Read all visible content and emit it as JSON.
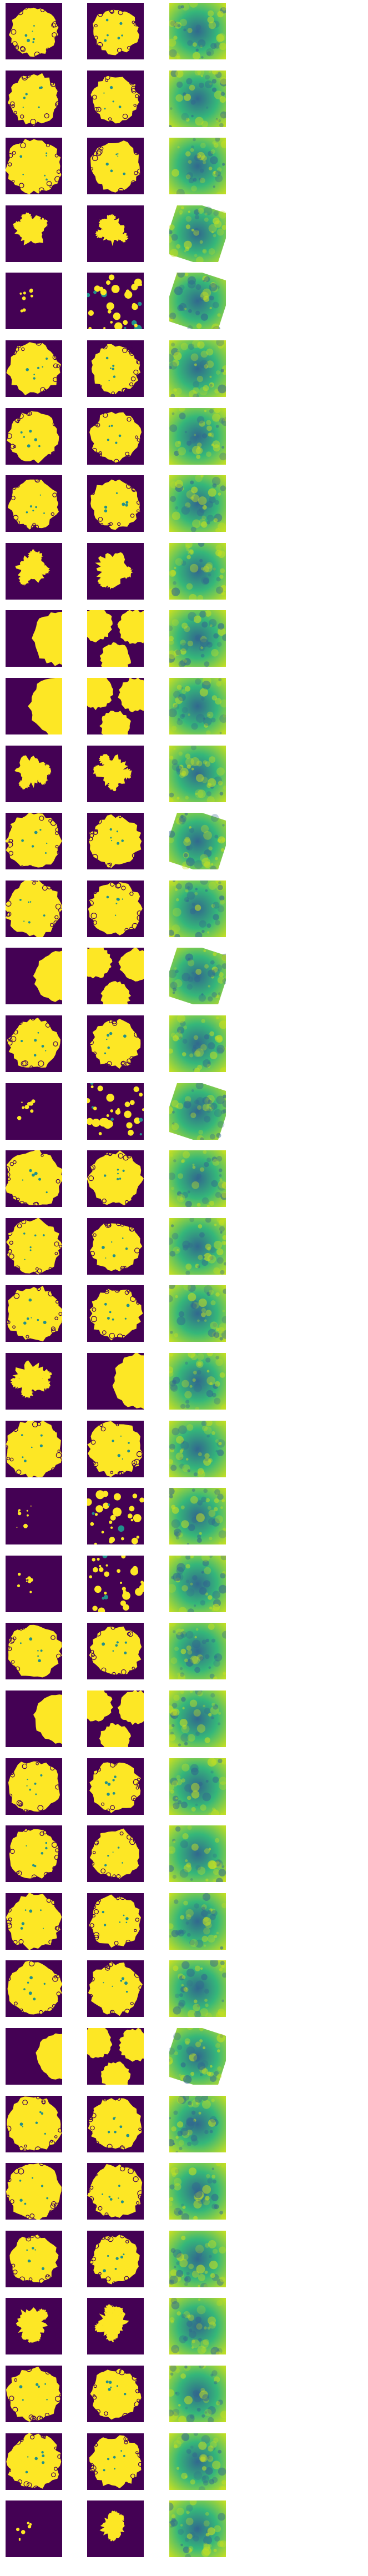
{
  "figure": {
    "rows": 38,
    "columns": 3,
    "column_kinds": [
      "binary-mask",
      "binary-mask",
      "continuous-map"
    ],
    "colormap": "viridis",
    "colors": {
      "background": "#ffffff",
      "mask_off": "#440154",
      "mask_on": "#fde725",
      "mask_edge_teal": "#21918c",
      "map_low": "#31688e",
      "map_mid": "#35b779",
      "map_high": "#c8e020"
    },
    "grid": [
      {
        "row": 1,
        "col1": {
          "cover": 0.55,
          "shape": "blob"
        },
        "col2": {
          "cover": 0.5,
          "shape": "blob"
        },
        "col3": {
          "mean": 0.55,
          "rotated": false
        }
      },
      {
        "row": 2,
        "col1": {
          "cover": 0.6,
          "shape": "blob"
        },
        "col2": {
          "cover": 0.52,
          "shape": "blob"
        },
        "col3": {
          "mean": 0.55,
          "rotated": false
        }
      },
      {
        "row": 3,
        "col1": {
          "cover": 0.72,
          "shape": "blob"
        },
        "col2": {
          "cover": 0.6,
          "shape": "blob"
        },
        "col3": {
          "mean": 0.58,
          "rotated": false
        }
      },
      {
        "row": 4,
        "col1": {
          "cover": 0.18,
          "shape": "fragment"
        },
        "col2": {
          "cover": 0.15,
          "shape": "fragment"
        },
        "col3": {
          "mean": 0.7,
          "rotated": true
        }
      },
      {
        "row": 5,
        "col1": {
          "cover": 0.05,
          "shape": "speck"
        },
        "col2": {
          "cover": 0.3,
          "shape": "patchy"
        },
        "col3": {
          "mean": 0.45,
          "rotated": true
        }
      },
      {
        "row": 6,
        "col1": {
          "cover": 0.65,
          "shape": "blob"
        },
        "col2": {
          "cover": 0.55,
          "shape": "blob"
        },
        "col3": {
          "mean": 0.58,
          "rotated": false
        }
      },
      {
        "row": 7,
        "col1": {
          "cover": 0.62,
          "shape": "blob"
        },
        "col2": {
          "cover": 0.58,
          "shape": "blob"
        },
        "col3": {
          "mean": 0.55,
          "rotated": false
        }
      },
      {
        "row": 8,
        "col1": {
          "cover": 0.58,
          "shape": "blob"
        },
        "col2": {
          "cover": 0.58,
          "shape": "blob"
        },
        "col3": {
          "mean": 0.6,
          "rotated": false
        }
      },
      {
        "row": 9,
        "col1": {
          "cover": 0.18,
          "shape": "fragment"
        },
        "col2": {
          "cover": 0.22,
          "shape": "fragment"
        },
        "col3": {
          "mean": 0.62,
          "rotated": false
        }
      },
      {
        "row": 10,
        "col1": {
          "cover": 0.35,
          "shape": "edge"
        },
        "col2": {
          "cover": 0.55,
          "shape": "multi"
        },
        "col3": {
          "mean": 0.45,
          "rotated": false
        }
      },
      {
        "row": 11,
        "col1": {
          "cover": 0.45,
          "shape": "edge"
        },
        "col2": {
          "cover": 0.55,
          "shape": "multi"
        },
        "col3": {
          "mean": 0.48,
          "rotated": false
        }
      },
      {
        "row": 12,
        "col1": {
          "cover": 0.2,
          "shape": "fragment"
        },
        "col2": {
          "cover": 0.2,
          "shape": "fragment"
        },
        "col3": {
          "mean": 0.72,
          "rotated": false
        }
      },
      {
        "row": 13,
        "col1": {
          "cover": 0.72,
          "shape": "blob"
        },
        "col2": {
          "cover": 0.62,
          "shape": "blob"
        },
        "col3": {
          "mean": 0.52,
          "rotated": true
        }
      },
      {
        "row": 14,
        "col1": {
          "cover": 0.75,
          "shape": "blob"
        },
        "col2": {
          "cover": 0.65,
          "shape": "blob"
        },
        "col3": {
          "mean": 0.5,
          "rotated": false
        }
      },
      {
        "row": 15,
        "col1": {
          "cover": 0.3,
          "shape": "edge"
        },
        "col2": {
          "cover": 0.5,
          "shape": "multi"
        },
        "col3": {
          "mean": 0.5,
          "rotated": true
        }
      },
      {
        "row": 16,
        "col1": {
          "cover": 0.6,
          "shape": "blob"
        },
        "col2": {
          "cover": 0.55,
          "shape": "blob"
        },
        "col3": {
          "mean": 0.52,
          "rotated": false
        }
      },
      {
        "row": 17,
        "col1": {
          "cover": 0.1,
          "shape": "speck"
        },
        "col2": {
          "cover": 0.35,
          "shape": "patchy"
        },
        "col3": {
          "mean": 0.4,
          "rotated": true
        }
      },
      {
        "row": 18,
        "col1": {
          "cover": 0.78,
          "shape": "blob"
        },
        "col2": {
          "cover": 0.68,
          "shape": "blob"
        },
        "col3": {
          "mean": 0.5,
          "rotated": false
        }
      },
      {
        "row": 19,
        "col1": {
          "cover": 0.7,
          "shape": "blob"
        },
        "col2": {
          "cover": 0.6,
          "shape": "blob"
        },
        "col3": {
          "mean": 0.55,
          "rotated": false
        }
      },
      {
        "row": 20,
        "col1": {
          "cover": 0.72,
          "shape": "blob"
        },
        "col2": {
          "cover": 0.62,
          "shape": "blob"
        },
        "col3": {
          "mean": 0.57,
          "rotated": false
        }
      },
      {
        "row": 21,
        "col1": {
          "cover": 0.22,
          "shape": "fragment"
        },
        "col2": {
          "cover": 0.38,
          "shape": "edge"
        },
        "col3": {
          "mean": 0.6,
          "rotated": false
        }
      },
      {
        "row": 22,
        "col1": {
          "cover": 0.78,
          "shape": "blob"
        },
        "col2": {
          "cover": 0.7,
          "shape": "blob"
        },
        "col3": {
          "mean": 0.52,
          "rotated": false
        }
      },
      {
        "row": 23,
        "col1": {
          "cover": 0.06,
          "shape": "speck"
        },
        "col2": {
          "cover": 0.35,
          "shape": "patchy"
        },
        "col3": {
          "mean": 0.42,
          "rotated": false
        }
      },
      {
        "row": 24,
        "col1": {
          "cover": 0.12,
          "shape": "speck"
        },
        "col2": {
          "cover": 0.3,
          "shape": "patchy"
        },
        "col3": {
          "mean": 0.45,
          "rotated": false
        }
      },
      {
        "row": 25,
        "col1": {
          "cover": 0.7,
          "shape": "blob"
        },
        "col2": {
          "cover": 0.62,
          "shape": "blob"
        },
        "col3": {
          "mean": 0.52,
          "rotated": false
        }
      },
      {
        "row": 26,
        "col1": {
          "cover": 0.3,
          "shape": "edge"
        },
        "col2": {
          "cover": 0.55,
          "shape": "multi"
        },
        "col3": {
          "mean": 0.48,
          "rotated": false
        }
      },
      {
        "row": 27,
        "col1": {
          "cover": 0.65,
          "shape": "blob"
        },
        "col2": {
          "cover": 0.6,
          "shape": "blob"
        },
        "col3": {
          "mean": 0.52,
          "rotated": false
        }
      },
      {
        "row": 28,
        "col1": {
          "cover": 0.62,
          "shape": "blob"
        },
        "col2": {
          "cover": 0.58,
          "shape": "blob"
        },
        "col3": {
          "mean": 0.55,
          "rotated": false
        }
      },
      {
        "row": 29,
        "col1": {
          "cover": 0.72,
          "shape": "blob"
        },
        "col2": {
          "cover": 0.62,
          "shape": "blob"
        },
        "col3": {
          "mean": 0.55,
          "rotated": false
        }
      },
      {
        "row": 30,
        "col1": {
          "cover": 0.7,
          "shape": "blob"
        },
        "col2": {
          "cover": 0.65,
          "shape": "blob"
        },
        "col3": {
          "mean": 0.5,
          "rotated": false
        }
      },
      {
        "row": 31,
        "col1": {
          "cover": 0.25,
          "shape": "edge"
        },
        "col2": {
          "cover": 0.5,
          "shape": "multi"
        },
        "col3": {
          "mean": 0.45,
          "rotated": true
        }
      },
      {
        "row": 32,
        "col1": {
          "cover": 0.72,
          "shape": "blob"
        },
        "col2": {
          "cover": 0.65,
          "shape": "blob"
        },
        "col3": {
          "mean": 0.5,
          "rotated": false
        }
      },
      {
        "row": 33,
        "col1": {
          "cover": 0.75,
          "shape": "blob"
        },
        "col2": {
          "cover": 0.68,
          "shape": "blob"
        },
        "col3": {
          "mean": 0.52,
          "rotated": false
        }
      },
      {
        "row": 34,
        "col1": {
          "cover": 0.55,
          "shape": "blob"
        },
        "col2": {
          "cover": 0.55,
          "shape": "blob"
        },
        "col3": {
          "mean": 0.55,
          "rotated": false
        }
      },
      {
        "row": 35,
        "col1": {
          "cover": 0.2,
          "shape": "fragment"
        },
        "col2": {
          "cover": 0.18,
          "shape": "fragment"
        },
        "col3": {
          "mean": 0.72,
          "rotated": false
        }
      },
      {
        "row": 36,
        "col1": {
          "cover": 0.68,
          "shape": "blob"
        },
        "col2": {
          "cover": 0.6,
          "shape": "blob"
        },
        "col3": {
          "mean": 0.55,
          "rotated": false
        }
      },
      {
        "row": 37,
        "col1": {
          "cover": 0.7,
          "shape": "blob"
        },
        "col2": {
          "cover": 0.62,
          "shape": "blob"
        },
        "col3": {
          "mean": 0.55,
          "rotated": false
        }
      },
      {
        "row": 38,
        "col1": {
          "cover": 0.08,
          "shape": "speck"
        },
        "col2": {
          "cover": 0.12,
          "shape": "fragment"
        },
        "col3": {
          "mean": 0.58,
          "rotated": false
        }
      }
    ]
  }
}
